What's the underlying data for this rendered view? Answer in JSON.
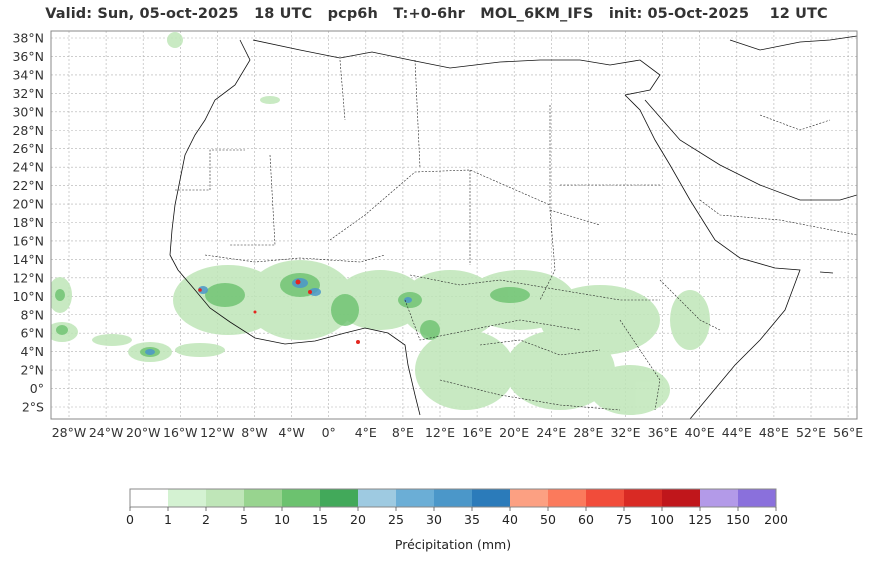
{
  "title": "Valid: Sun, 05-oct-2025   18 UTC   pcp6h   T:+0-6hr   MOL_6KM_IFS   init: 05-Oct-2025    12 UTC",
  "map": {
    "lat_labels": [
      "38°N",
      "36°N",
      "34°N",
      "32°N",
      "30°N",
      "28°N",
      "26°N",
      "24°N",
      "22°N",
      "20°N",
      "18°N",
      "16°N",
      "14°N",
      "12°N",
      "10°N",
      "8°N",
      "6°N",
      "4°N",
      "2°N",
      "0°",
      "2°S"
    ],
    "lon_labels": [
      "28°W",
      "24°W",
      "20°W",
      "16°W",
      "12°W",
      "8°W",
      "4°W",
      "0°",
      "4°E",
      "8°E",
      "12°E",
      "16°E",
      "20°E",
      "24°E",
      "28°E",
      "32°E",
      "36°E",
      "40°E",
      "44°E",
      "48°E",
      "52°E",
      "56°E"
    ],
    "grid": true
  },
  "colorbar": {
    "title": "Précipitation (mm)",
    "ticks": [
      "0",
      "1",
      "2",
      "5",
      "10",
      "15",
      "20",
      "25",
      "30",
      "35",
      "40",
      "50",
      "60",
      "75",
      "100",
      "125",
      "150",
      "200"
    ],
    "colors": [
      "#ffffff",
      "#d4f2d2",
      "#bfe6b8",
      "#98d48f",
      "#6cc26f",
      "#42a95a",
      "#9ecae1",
      "#6baed6",
      "#4b97c9",
      "#2b7bba",
      "#fca082",
      "#fb7a5c",
      "#f14c3a",
      "#d92a24",
      "#c0161b",
      "#b39ae8",
      "#8a70dc",
      "#4a0080"
    ]
  }
}
